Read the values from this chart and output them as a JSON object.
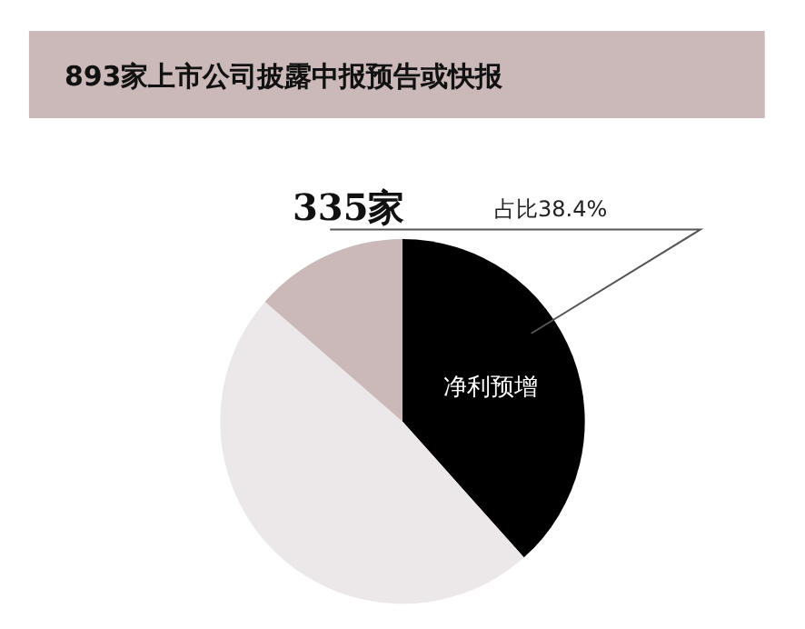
{
  "chart_data": {
    "type": "pie",
    "title": "893家上市公司披露中报预告或快报",
    "categories": [
      "净利预增",
      null,
      null
    ],
    "values": [
      38.4,
      48.0,
      13.6
    ],
    "colors": [
      "#000000",
      "#ece8e9",
      "#cbb9b9"
    ],
    "value_labels": [
      "占比38.4%",
      null,
      null
    ],
    "annotations": [
      "335家"
    ],
    "legend": false
  }
}
